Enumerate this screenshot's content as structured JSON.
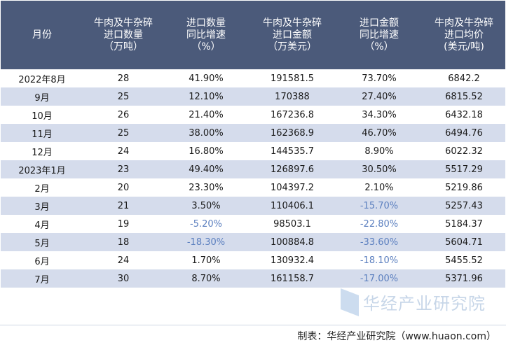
{
  "table": {
    "headers": [
      [
        "月份"
      ],
      [
        "牛肉及牛杂碎",
        "进口数量",
        "（万吨）"
      ],
      [
        "进口数量",
        "同比增速",
        "（%）"
      ],
      [
        "牛肉及牛杂碎",
        "进口金额",
        "（万美元）"
      ],
      [
        "进口金额",
        "同比增速",
        "（%）"
      ],
      [
        "牛肉及牛杂碎",
        "进口均价",
        "(美元/吨)"
      ]
    ],
    "rows": [
      [
        "2022年8月",
        "28",
        "41.90%",
        "191581.5",
        "73.70%",
        "6842.2"
      ],
      [
        "9月",
        "25",
        "12.10%",
        "170388",
        "27.40%",
        "6815.52"
      ],
      [
        "10月",
        "26",
        "21.40%",
        "167236.8",
        "34.30%",
        "6432.18"
      ],
      [
        "11月",
        "25",
        "38.00%",
        "162368.9",
        "46.70%",
        "6494.76"
      ],
      [
        "12月",
        "24",
        "16.80%",
        "144535.7",
        "8.90%",
        "6022.32"
      ],
      [
        "2023年1月",
        "23",
        "49.40%",
        "126897.6",
        "30.50%",
        "5517.29"
      ],
      [
        "2月",
        "20",
        "23.30%",
        "104397.2",
        "2.10%",
        "5219.86"
      ],
      [
        "3月",
        "21",
        "3.50%",
        "110406.1",
        "-15.70%",
        "5257.43"
      ],
      [
        "4月",
        "19",
        "-5.20%",
        "98503.1",
        "-22.80%",
        "5184.37"
      ],
      [
        "5月",
        "18",
        "-18.30%",
        "100884.8",
        "-33.60%",
        "5604.71"
      ],
      [
        "6月",
        "24",
        "1.70%",
        "130932.4",
        "-18.10%",
        "5455.52"
      ],
      [
        "7月",
        "30",
        "8.70%",
        "161158.7",
        "-17.00%",
        "5371.96"
      ]
    ]
  },
  "footer": {
    "source": "制表：华经产业研究院（www.huaon.com）"
  },
  "watermark": {
    "text": "华经产业研究院"
  },
  "colors": {
    "header_bg": "#4b5a7a",
    "stripe": "#d5dcec",
    "negative": "#5b7fbf"
  }
}
